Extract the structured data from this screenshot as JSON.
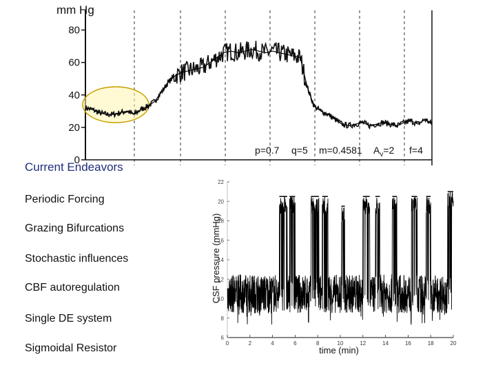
{
  "slide": {
    "title": "Current Endeavors",
    "items": [
      "Periodic Forcing",
      "Grazing Bifurcations",
      "Stochastic influences",
      "CBF autoregulation",
      "Single DE system",
      "Sigmoidal Resistor"
    ]
  },
  "chart_data": [
    {
      "type": "line",
      "title": "",
      "ylabel": "mm Hg",
      "xlabel": "",
      "ylim": [
        0,
        90
      ],
      "yticks": [
        0,
        20,
        40,
        60,
        80
      ],
      "ytick_labels": [
        "0",
        "20",
        "40",
        "60",
        "80"
      ],
      "grid": "vertical dashed lines",
      "highlight": "yellow ellipse around early baseline segment",
      "annotations": [
        {
          "text": "p=0.7"
        },
        {
          "text": "q=5"
        },
        {
          "text": "m=0.4581"
        },
        {
          "text": "A",
          "sub": "v",
          "rest": "=2"
        },
        {
          "text": "f=4"
        }
      ],
      "x": [
        0,
        0.02,
        0.04,
        0.06,
        0.08,
        0.1,
        0.12,
        0.14,
        0.16,
        0.18,
        0.2,
        0.22,
        0.24,
        0.26,
        0.28,
        0.3,
        0.32,
        0.34,
        0.36,
        0.38,
        0.4,
        0.42,
        0.44,
        0.46,
        0.48,
        0.5,
        0.52,
        0.54,
        0.56,
        0.58,
        0.6,
        0.62,
        0.64,
        0.66,
        0.68,
        0.7,
        0.72,
        0.74,
        0.76,
        0.78,
        0.8,
        0.82,
        0.84,
        0.86,
        0.88,
        0.9,
        0.92,
        0.94,
        0.96,
        0.98,
        1.0
      ],
      "series": [
        {
          "values": [
            32,
            31,
            29,
            28,
            28,
            29,
            30,
            28,
            31,
            33,
            36,
            42,
            48,
            52,
            54,
            55,
            56,
            57,
            60,
            63,
            66,
            67,
            66,
            67,
            68,
            67,
            66,
            67,
            66,
            65,
            64,
            63,
            45,
            33,
            30,
            28,
            25,
            22,
            21,
            22,
            23,
            21,
            22,
            23,
            22,
            21,
            23,
            24,
            22,
            25,
            22
          ]
        }
      ]
    },
    {
      "type": "line",
      "title": "",
      "ylabel": "CSF pressure (mmHg)",
      "xlabel": "time (min)",
      "xlim": [
        0,
        20
      ],
      "ylim": [
        6,
        22
      ],
      "xticks": [
        0,
        2,
        4,
        6,
        8,
        10,
        12,
        14,
        16,
        18,
        20
      ],
      "xtick_labels": [
        "0",
        "2",
        "4",
        "6",
        "8",
        "10",
        "12",
        "14",
        "16",
        "18",
        "20"
      ],
      "yticks": [
        6,
        8,
        10,
        12,
        14,
        16,
        18,
        20,
        22
      ],
      "ytick_labels": [
        "6",
        "8",
        "10",
        "12",
        "14",
        "16",
        "18",
        "20",
        "22"
      ],
      "baseline_range": [
        8.5,
        12.5
      ],
      "bursts": [
        {
          "start": 4.6,
          "end": 5.3,
          "level": 20.5
        },
        {
          "start": 5.5,
          "end": 6.0,
          "level": 20.5
        },
        {
          "start": 7.4,
          "end": 8.1,
          "level": 20.5
        },
        {
          "start": 8.4,
          "end": 8.9,
          "level": 20.5
        },
        {
          "start": 10.1,
          "end": 10.4,
          "level": 19.5
        },
        {
          "start": 12.0,
          "end": 12.6,
          "level": 20.5
        },
        {
          "start": 13.1,
          "end": 13.5,
          "level": 20.5
        },
        {
          "start": 14.6,
          "end": 15.0,
          "level": 20.5
        },
        {
          "start": 16.3,
          "end": 16.8,
          "level": 20.5
        },
        {
          "start": 17.6,
          "end": 18.0,
          "level": 20.5
        },
        {
          "start": 19.5,
          "end": 20.0,
          "level": 21.0
        }
      ]
    }
  ]
}
